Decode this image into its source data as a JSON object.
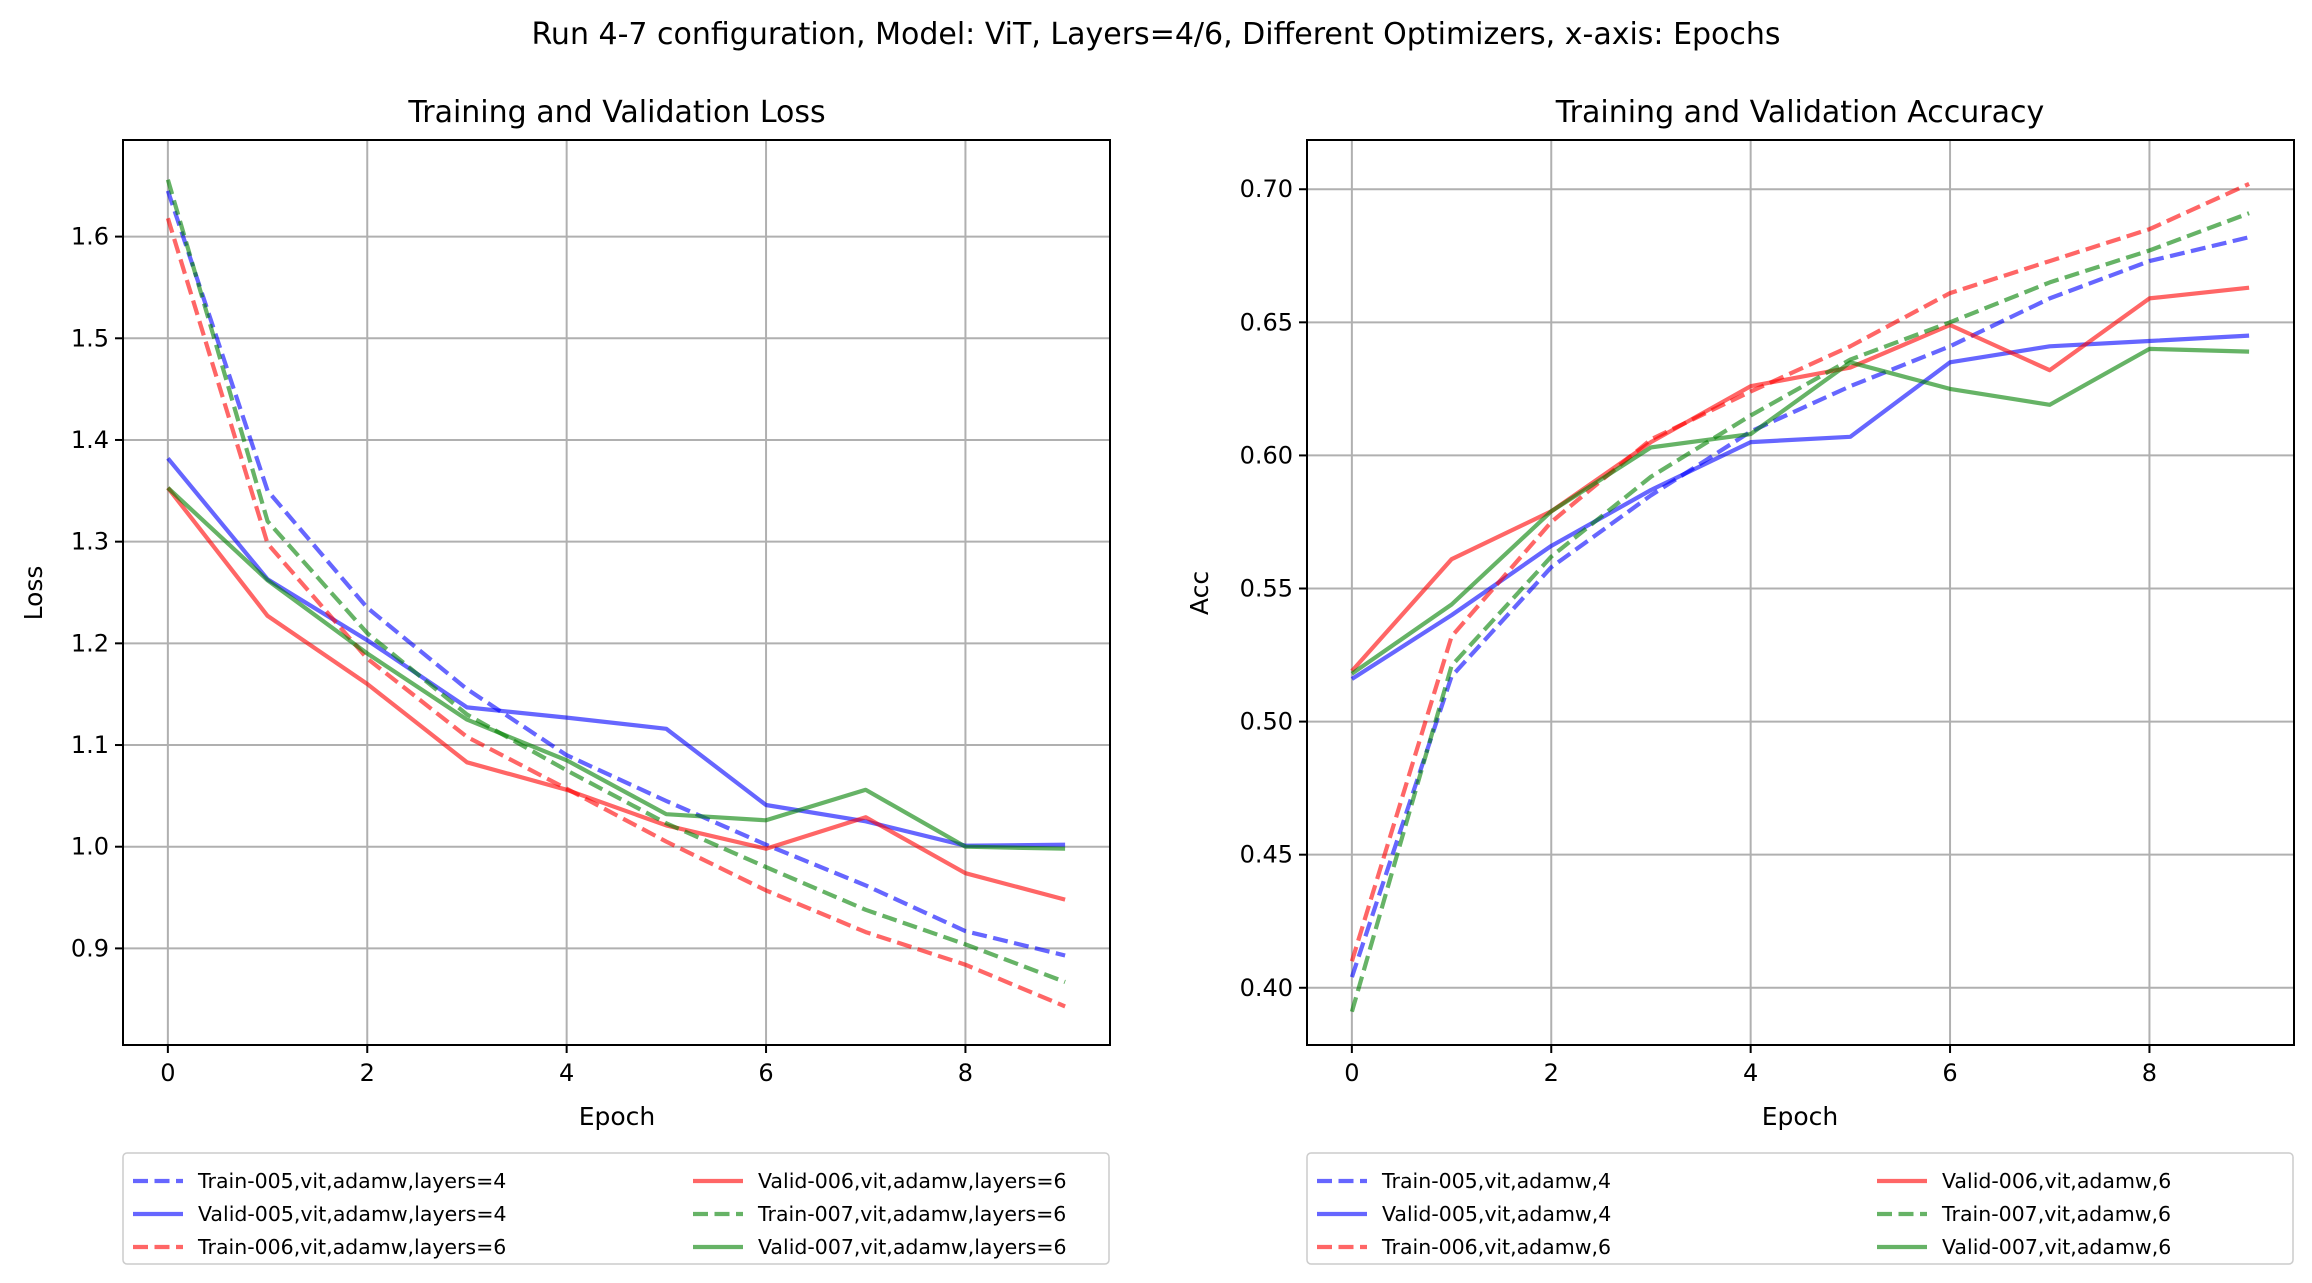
{
  "suptitle": "Run 4-7 configuration, Model: ViT, Layers=4/6, Different Optimizers, x-axis: Epochs",
  "chart_data": [
    {
      "type": "line",
      "title": "Training and Validation Loss",
      "xlabel": "Epoch",
      "ylabel": "Loss",
      "xlim": [
        -0.45,
        9.45
      ],
      "ylim": [
        0.805,
        1.695
      ],
      "xticks": [
        "0",
        "2",
        "4",
        "6",
        "8"
      ],
      "yticks": [
        "0.9",
        "1.0",
        "1.1",
        "1.2",
        "1.3",
        "1.4",
        "1.5",
        "1.6"
      ],
      "grid": true,
      "legend_position": "below, 2 columns",
      "x": [
        0,
        1,
        2,
        3,
        4,
        5,
        6,
        7,
        8,
        9
      ],
      "series": [
        {
          "name": "Train-005,vit,adamw,layers=4",
          "color": "#0000ff",
          "style": "dashed",
          "values": [
            1.645,
            1.35,
            1.235,
            1.155,
            1.09,
            1.045,
            1.002,
            0.962,
            0.917,
            0.893
          ]
        },
        {
          "name": "Valid-005,vit,adamw,layers=4",
          "color": "#0000ff",
          "style": "solid",
          "values": [
            1.382,
            1.263,
            1.203,
            1.137,
            1.127,
            1.116,
            1.041,
            1.025,
            1.001,
            1.002
          ]
        },
        {
          "name": "Train-006,vit,adamw,layers=6",
          "color": "#ff0000",
          "style": "dashed",
          "values": [
            1.618,
            1.298,
            1.185,
            1.108,
            1.057,
            1.005,
            0.957,
            0.916,
            0.884,
            0.843
          ]
        },
        {
          "name": "Valid-006,vit,adamw,layers=6",
          "color": "#ff0000",
          "style": "solid",
          "values": [
            1.353,
            1.227,
            1.16,
            1.083,
            1.056,
            1.021,
            0.998,
            1.029,
            0.974,
            0.948
          ]
        },
        {
          "name": "Train-007,vit,adamw,layers=6",
          "color": "#008000",
          "style": "dashed",
          "values": [
            1.656,
            1.32,
            1.21,
            1.13,
            1.075,
            1.023,
            0.98,
            0.938,
            0.904,
            0.867
          ]
        },
        {
          "name": "Valid-007,vit,adamw,layers=6",
          "color": "#008000",
          "style": "solid",
          "values": [
            1.353,
            1.262,
            1.19,
            1.125,
            1.085,
            1.032,
            1.026,
            1.056,
            1.0,
            0.998
          ]
        }
      ]
    },
    {
      "type": "line",
      "title": "Training and Validation Accuracy",
      "xlabel": "Epoch",
      "ylabel": "Acc",
      "xlim": [
        -0.45,
        9.45
      ],
      "ylim": [
        0.3785,
        0.7185
      ],
      "xticks": [
        "0",
        "2",
        "4",
        "6",
        "8"
      ],
      "yticks": [
        "0.40",
        "0.45",
        "0.50",
        "0.55",
        "0.60",
        "0.65",
        "0.70"
      ],
      "grid": true,
      "legend_position": "below, 2 columns",
      "x": [
        0,
        1,
        2,
        3,
        4,
        5,
        6,
        7,
        8,
        9
      ],
      "series": [
        {
          "name": "Train-005,vit,adamw,4",
          "color": "#0000ff",
          "style": "dashed",
          "values": [
            0.404,
            0.517,
            0.558,
            0.585,
            0.609,
            0.626,
            0.641,
            0.659,
            0.673,
            0.682
          ]
        },
        {
          "name": "Valid-005,vit,adamw,4",
          "color": "#0000ff",
          "style": "solid",
          "values": [
            0.516,
            0.54,
            0.566,
            0.587,
            0.605,
            0.607,
            0.635,
            0.641,
            0.643,
            0.645
          ]
        },
        {
          "name": "Train-006,vit,adamw,6",
          "color": "#ff0000",
          "style": "dashed",
          "values": [
            0.41,
            0.532,
            0.575,
            0.606,
            0.624,
            0.641,
            0.661,
            0.673,
            0.685,
            0.702
          ]
        },
        {
          "name": "Valid-006,vit,adamw,6",
          "color": "#ff0000",
          "style": "solid",
          "values": [
            0.519,
            0.561,
            0.579,
            0.605,
            0.626,
            0.633,
            0.649,
            0.632,
            0.659,
            0.663
          ]
        },
        {
          "name": "Train-007,vit,adamw,6",
          "color": "#008000",
          "style": "dashed",
          "values": [
            0.391,
            0.521,
            0.562,
            0.592,
            0.615,
            0.636,
            0.65,
            0.665,
            0.677,
            0.691
          ]
        },
        {
          "name": "Valid-007,vit,adamw,6",
          "color": "#008000",
          "style": "solid",
          "values": [
            0.518,
            0.544,
            0.579,
            0.603,
            0.608,
            0.635,
            0.625,
            0.619,
            0.64,
            0.639
          ]
        }
      ]
    }
  ]
}
